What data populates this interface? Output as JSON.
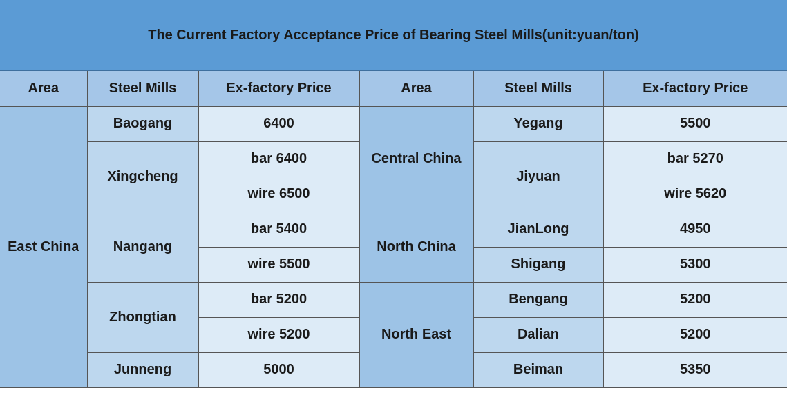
{
  "title": "The Current Factory Acceptance Price of Bearing Steel Mills(unit:yuan/ton)",
  "headers": {
    "area": "Area",
    "mills": "Steel Mills",
    "price": "Ex-factory Price"
  },
  "left": {
    "area": "East China",
    "mills": {
      "baogang": "Baogang",
      "xingcheng": "Xingcheng",
      "nangang": "Nangang",
      "zhongtian": "Zhongtian",
      "junneng": "Junneng"
    },
    "prices": {
      "baogang": "6400",
      "xingcheng_bar": "bar 6400",
      "xingcheng_wire": "wire 6500",
      "nangang_bar": "bar 5400",
      "nangang_wire": "wire 5500",
      "zhongtian_bar": "bar 5200",
      "zhongtian_wire": "wire 5200",
      "junneng": "5000"
    }
  },
  "right": {
    "areas": {
      "central": "Central China",
      "north": "North China",
      "northeast": "North East"
    },
    "mills": {
      "yegang": "Yegang",
      "jiyuan": "Jiyuan",
      "jianlong": "JianLong",
      "shigang": "Shigang",
      "bengang": "Bengang",
      "dalian": "Dalian",
      "beiman": "Beiman"
    },
    "prices": {
      "yegang": "5500",
      "jiyuan_bar": "bar 5270",
      "jiyuan_wire": "wire 5620",
      "jianlong": "4950",
      "shigang": "5300",
      "bengang": "5200",
      "dalian": "5200",
      "beiman": "5350"
    }
  }
}
